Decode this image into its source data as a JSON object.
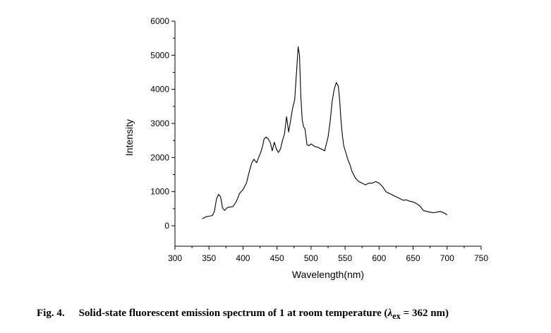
{
  "caption": {
    "figure_number": "Fig. 4.",
    "text_before": "Solid-state fluorescent emission spectrum of 1 at room temperature (",
    "lambda_symbol": "λ",
    "lambda_sub": "ex",
    "text_after": " = 362 nm)"
  },
  "chart_data": {
    "type": "line",
    "title": "",
    "xlabel": "Wavelength(nm)",
    "ylabel": "Intensity",
    "xlim": [
      300,
      750
    ],
    "ylim": [
      -600,
      6000
    ],
    "xticks": [
      300,
      350,
      400,
      450,
      500,
      550,
      600,
      650,
      700,
      750
    ],
    "yticks": [
      0,
      1000,
      2000,
      3000,
      4000,
      5000,
      6000
    ],
    "grid": false,
    "line_color": "#000000",
    "series": [
      {
        "x": [
          340,
          345,
          350,
          355,
          358,
          361,
          364,
          367,
          370,
          373,
          376,
          380,
          385,
          390,
          395,
          400,
          405,
          410,
          413,
          416,
          418,
          420,
          423,
          426,
          429,
          431,
          434,
          437,
          440,
          443,
          446,
          449,
          452,
          455,
          458,
          461,
          464,
          467,
          470,
          473,
          476,
          479,
          481,
          483,
          485,
          487,
          489,
          491,
          494,
          497,
          500,
          505,
          510,
          515,
          520,
          525,
          528,
          531,
          534,
          537,
          540,
          542,
          544,
          546,
          548,
          551,
          554,
          557,
          560,
          565,
          570,
          575,
          580,
          585,
          590,
          595,
          600,
          605,
          610,
          615,
          620,
          625,
          630,
          635,
          640,
          645,
          650,
          655,
          660,
          665,
          670,
          675,
          680,
          685,
          690,
          695,
          700
        ],
        "y": [
          200,
          260,
          280,
          300,
          420,
          780,
          920,
          850,
          520,
          450,
          520,
          550,
          560,
          700,
          950,
          1060,
          1250,
          1650,
          1850,
          1950,
          1900,
          1850,
          2000,
          2150,
          2350,
          2550,
          2600,
          2550,
          2450,
          2200,
          2450,
          2250,
          2150,
          2250,
          2500,
          2700,
          3200,
          2750,
          3100,
          3450,
          3700,
          4600,
          5250,
          5000,
          3800,
          3100,
          2900,
          2850,
          2380,
          2350,
          2400,
          2330,
          2300,
          2250,
          2200,
          2600,
          3050,
          3650,
          4000,
          4200,
          4100,
          3700,
          3100,
          2650,
          2350,
          2150,
          1950,
          1800,
          1600,
          1400,
          1300,
          1250,
          1200,
          1250,
          1250,
          1300,
          1250,
          1150,
          1000,
          950,
          900,
          850,
          800,
          750,
          760,
          720,
          700,
          650,
          580,
          450,
          420,
          400,
          380,
          400,
          420,
          380,
          320
        ]
      }
    ]
  }
}
